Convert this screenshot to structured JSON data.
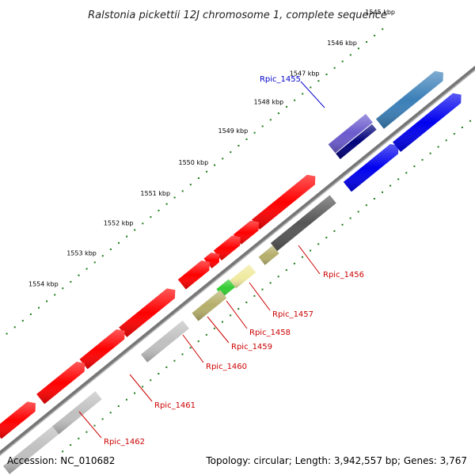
{
  "title": "Ralstonia pickettii 12J chromosome 1, complete sequence",
  "footer": {
    "accession": "Accession: NC_010682",
    "topology": "Topology: circular; Length: 3,942,557 bp; Genes: 3,767"
  },
  "ticks": [
    "1545 kbp",
    "1546 kbp",
    "1547 kbp",
    "1548 kbp",
    "1549 kbp",
    "1550 kbp",
    "1551 kbp",
    "1552 kbp",
    "1553 kbp",
    "1554 kbp"
  ],
  "genes": [
    {
      "label": "Rpic_1455",
      "color": "#0000cc"
    },
    {
      "label": "Rpic_1456",
      "color": "#cc0000"
    },
    {
      "label": "Rpic_1457",
      "color": "#cc0000"
    },
    {
      "label": "Rpic_1458",
      "color": "#cc0000"
    },
    {
      "label": "Rpic_1459",
      "color": "#cc0000"
    },
    {
      "label": "Rpic_1460",
      "color": "#cc0000"
    },
    {
      "label": "Rpic_1461",
      "color": "#cc0000"
    },
    {
      "label": "Rpic_1462",
      "color": "#cc0000"
    }
  ],
  "colors": {
    "backbone": "#777777",
    "tick_dots": "#1a7a1a",
    "forward_strand": "#ff0000",
    "reverse_blue": "#0000ee",
    "steelblue": "#3a7fb8",
    "slateblue": "#6a5acd",
    "navy": "#00007a",
    "dark_gray": "#555555",
    "light_gray": "#c0c0c0",
    "olive": "#b5ae6a",
    "pale_yellow": "#f0eaa0",
    "green": "#33cc33"
  }
}
